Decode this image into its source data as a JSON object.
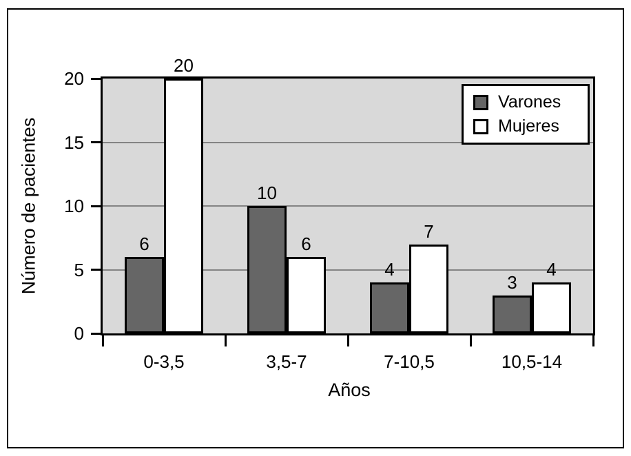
{
  "chart_data": {
    "type": "bar",
    "title": "",
    "categories": [
      "0-3,5",
      "3,5-7",
      "7-10,5",
      "10,5-14"
    ],
    "series": [
      {
        "name": "Varones",
        "values": [
          6,
          10,
          4,
          3
        ],
        "color": "#666666"
      },
      {
        "name": "Mujeres",
        "values": [
          20,
          6,
          7,
          4
        ],
        "color": "#ffffff"
      }
    ],
    "xlabel": "Años",
    "ylabel": "Número de pacientes",
    "ylim": [
      0,
      20
    ],
    "yticks": [
      0,
      5,
      10,
      15,
      20
    ],
    "gridlines_at": [
      5,
      10,
      15
    ],
    "grid": "horizontal",
    "bar_value_labels": true,
    "legend_position": "top-right",
    "colors": {
      "plot_background": "#d9d9d9",
      "gridline": "#848484",
      "axis": "#000000",
      "text": "#000000",
      "figure_background": "#ffffff"
    }
  }
}
